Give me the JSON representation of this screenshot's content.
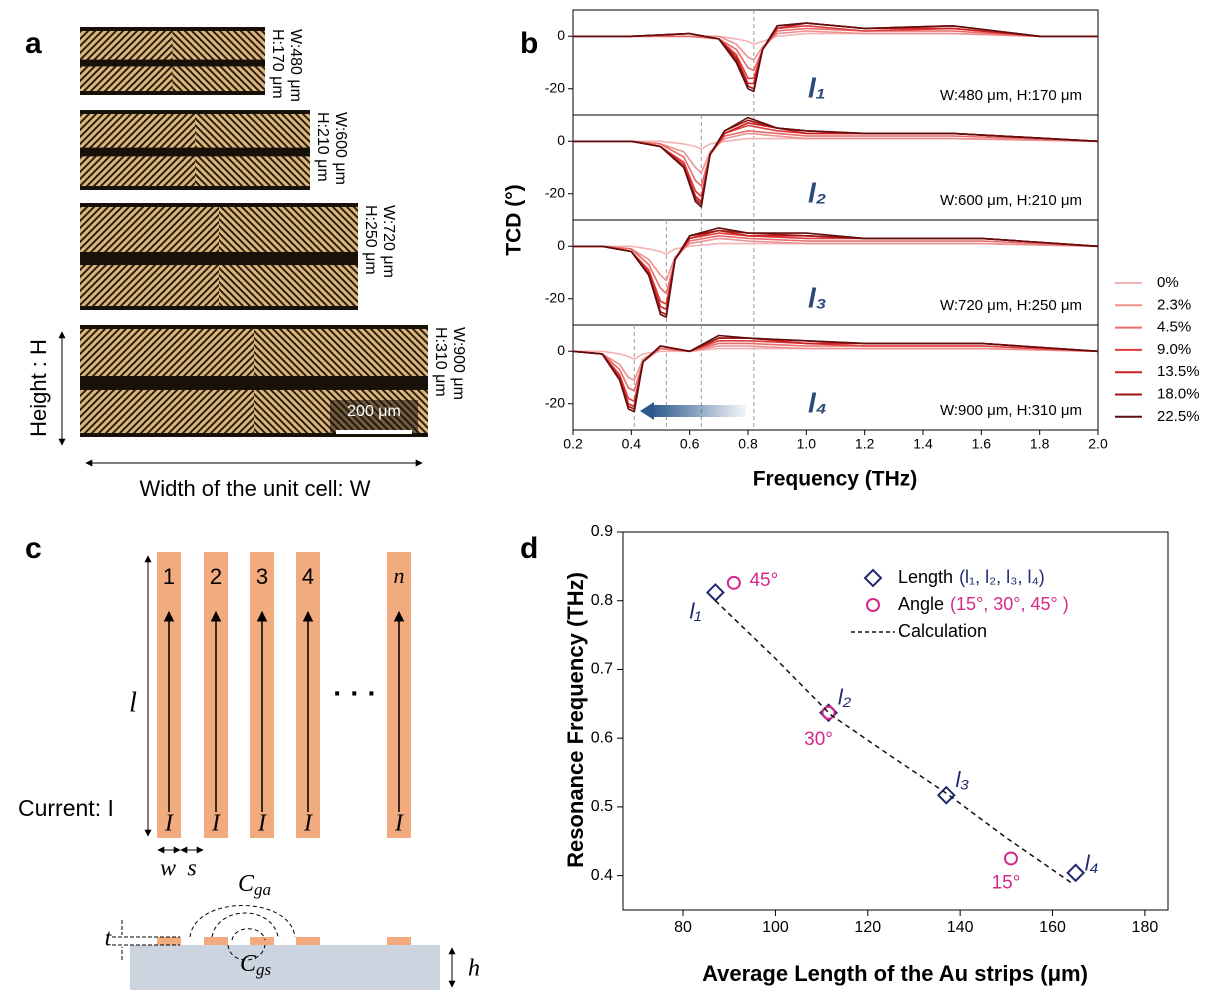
{
  "panel_labels": [
    "a",
    "b",
    "c",
    "d"
  ],
  "images": [
    {
      "w": "W:480 μm",
      "h": "H:170 μm"
    },
    {
      "w": "W:600 μm",
      "h": "H:210 μm"
    },
    {
      "w": "W:720 μm",
      "h": "H:250 μm"
    },
    {
      "w": "W:900 μm",
      "h": "H:310 μm"
    }
  ],
  "scale_bar": "200 μm",
  "height_label": "Height : H",
  "width_label": "Width of the unit cell: W",
  "chart_data": [
    {
      "type": "line",
      "xlabel": "Frequency (THz)",
      "ylabel": "TCD (°)",
      "xlim": [
        0.2,
        2.0
      ],
      "xticks": [
        0.2,
        0.4,
        0.6,
        0.8,
        {
          "value": 1,
          "label": "1.0"
        },
        1.2,
        1.4,
        1.6,
        1.8,
        {
          "value": 2,
          "label": "2.0"
        }
      ],
      "ylim": [
        -30,
        10
      ],
      "yticks": [
        -20,
        0
      ],
      "series": [
        {
          "name": "0%",
          "color": "#f4b3b3"
        },
        {
          "name": "2.3%",
          "color": "#ee9090"
        },
        {
          "name": "4.5%",
          "color": "#e86a6a"
        },
        {
          "name": "9.0%",
          "color": "#e03c3c"
        },
        {
          "name": "13.5%",
          "color": "#cf1f1f"
        },
        {
          "name": "18.0%",
          "color": "#9e1515"
        },
        {
          "name": "22.5%",
          "color": "#5e0e0e"
        }
      ],
      "subplots": [
        {
          "label": "l₁",
          "annotation": "W:480 μm, H:170 μm",
          "vlines": [
            0.82
          ],
          "x": [
            0.2,
            0.4,
            0.6,
            0.7,
            0.76,
            0.8,
            0.82,
            0.85,
            0.9,
            1.0,
            1.2,
            1.5,
            1.8,
            2.0
          ],
          "values": [
            [
              0,
              0,
              0,
              0,
              -1,
              -2,
              -3,
              -2,
              0,
              1,
              1,
              1,
              0,
              0
            ],
            [
              0,
              0,
              0,
              0,
              -3,
              -8,
              -9,
              -4,
              1,
              2,
              1,
              1,
              0,
              0
            ],
            [
              0,
              0,
              0,
              -1,
              -5,
              -12,
              -13,
              -5,
              2,
              3,
              2,
              2,
              0,
              0
            ],
            [
              0,
              0,
              1,
              -1,
              -7,
              -16,
              -16,
              -5,
              3,
              4,
              2,
              3,
              0,
              0
            ],
            [
              0,
              0,
              1,
              -1,
              -8,
              -18,
              -18,
              -5,
              3,
              5,
              3,
              3,
              0,
              0
            ],
            [
              0,
              0,
              1,
              -1,
              -9,
              -19,
              -20,
              -5,
              4,
              5,
              3,
              4,
              0,
              0
            ],
            [
              0,
              0,
              1,
              -1,
              -10,
              -20,
              -21,
              -5,
              4,
              5,
              3,
              4,
              0,
              0
            ]
          ]
        },
        {
          "label": "l₂",
          "annotation": "W:600 μm, H:210 μm",
          "vlines": [
            0.64,
            0.82
          ],
          "x": [
            0.2,
            0.4,
            0.5,
            0.58,
            0.62,
            0.64,
            0.67,
            0.72,
            0.8,
            0.9,
            1.0,
            1.2,
            1.5,
            2.0
          ],
          "values": [
            [
              0,
              0,
              0,
              -1,
              -2,
              -3,
              -1,
              0,
              1,
              1,
              1,
              1,
              1,
              0
            ],
            [
              0,
              0,
              -1,
              -4,
              -10,
              -12,
              -4,
              1,
              3,
              2,
              1,
              1,
              1,
              0
            ],
            [
              0,
              0,
              -1,
              -6,
              -15,
              -17,
              -5,
              2,
              4,
              3,
              2,
              2,
              2,
              0
            ],
            [
              0,
              0,
              -2,
              -8,
              -19,
              -21,
              -5,
              3,
              6,
              4,
              3,
              3,
              3,
              0
            ],
            [
              0,
              0,
              -2,
              -9,
              -21,
              -23,
              -5,
              3,
              7,
              5,
              3,
              3,
              3,
              0
            ],
            [
              0,
              0,
              -2,
              -10,
              -22,
              -24,
              -5,
              4,
              8,
              5,
              4,
              3,
              3,
              0
            ],
            [
              0,
              0,
              -2,
              -10,
              -23,
              -25,
              -5,
              4,
              9,
              5,
              4,
              3,
              3,
              0
            ]
          ]
        },
        {
          "label": "l₃",
          "annotation": "W:720 μm, H:250 μm",
          "vlines": [
            0.52,
            0.64,
            0.82
          ],
          "x": [
            0.2,
            0.3,
            0.4,
            0.46,
            0.5,
            0.52,
            0.55,
            0.6,
            0.7,
            0.8,
            1.0,
            1.2,
            1.6,
            2.0
          ],
          "values": [
            [
              0,
              0,
              0,
              -1,
              -2,
              -3,
              -1,
              0,
              1,
              1,
              1,
              1,
              1,
              0
            ],
            [
              0,
              0,
              -1,
              -5,
              -11,
              -13,
              -4,
              1,
              3,
              2,
              1,
              1,
              1,
              0
            ],
            [
              0,
              0,
              -1,
              -7,
              -16,
              -18,
              -5,
              2,
              4,
              3,
              2,
              2,
              2,
              0
            ],
            [
              0,
              0,
              -2,
              -9,
              -21,
              -22,
              -5,
              3,
              5,
              4,
              3,
              3,
              3,
              0
            ],
            [
              0,
              0,
              -2,
              -10,
              -23,
              -24,
              -5,
              3,
              6,
              4,
              4,
              3,
              3,
              0
            ],
            [
              0,
              0,
              -2,
              -11,
              -25,
              -26,
              -5,
              4,
              6,
              5,
              4,
              3,
              3,
              0
            ],
            [
              0,
              0,
              -2,
              -11,
              -26,
              -27,
              -5,
              4,
              7,
              5,
              5,
              3,
              3,
              0
            ]
          ]
        },
        {
          "label": "l₄",
          "annotation": "W:900 μm, H:310 μm",
          "vlines": [
            0.41,
            0.52,
            0.64,
            0.82
          ],
          "x": [
            0.2,
            0.3,
            0.36,
            0.39,
            0.41,
            0.44,
            0.5,
            0.6,
            0.7,
            0.8,
            1.0,
            1.2,
            1.6,
            2.0
          ],
          "values": [
            [
              0,
              0,
              -1,
              -2,
              -3,
              -1,
              0,
              0,
              1,
              1,
              1,
              1,
              1,
              0
            ],
            [
              0,
              -1,
              -5,
              -10,
              -11,
              -3,
              1,
              0,
              2,
              2,
              1,
              1,
              1,
              0
            ],
            [
              0,
              -1,
              -7,
              -14,
              -15,
              -4,
              1,
              0,
              3,
              3,
              2,
              2,
              2,
              0
            ],
            [
              0,
              -1,
              -9,
              -18,
              -19,
              -4,
              2,
              0,
              4,
              4,
              3,
              2,
              2,
              0
            ],
            [
              0,
              -1,
              -10,
              -20,
              -21,
              -4,
              2,
              0,
              5,
              5,
              3,
              3,
              3,
              0
            ],
            [
              0,
              -1,
              -11,
              -21,
              -22,
              -4,
              2,
              0,
              5,
              5,
              4,
              3,
              3,
              0
            ],
            [
              0,
              -1,
              -11,
              -22,
              -23,
              -4,
              2,
              0,
              6,
              5,
              4,
              3,
              3,
              0
            ]
          ]
        }
      ]
    },
    {
      "type": "scatter",
      "xlabel": "Average Length of the Au strips (μm)",
      "ylabel": "Resonance Frequency (THz)",
      "xlim": [
        67,
        185
      ],
      "xticks": [
        80,
        100,
        120,
        140,
        160,
        180
      ],
      "ylim": [
        0.35,
        0.9
      ],
      "yticks": [
        0.4,
        0.5,
        0.6,
        0.7,
        0.8,
        0.9
      ],
      "series": [
        {
          "name": "Length",
          "name_detail": "(l₁, l₂, l₃, l₄)",
          "marker": "diamond",
          "color": "#1f2a6e",
          "x": [
            87,
            111.5,
            137,
            165
          ],
          "values": [
            0.812,
            0.637,
            0.517,
            0.404
          ],
          "point_labels": [
            "l₁",
            "l₂",
            "l₃",
            "l₄"
          ]
        },
        {
          "name": "Angle",
          "name_detail": "(15°, 30°, 45° )",
          "marker": "circle",
          "color": "#d6288a",
          "x": [
            91,
            111.5,
            151
          ],
          "values": [
            0.826,
            0.637,
            0.425
          ],
          "point_labels": [
            "45°",
            "30°",
            "15°"
          ]
        },
        {
          "name": "Calculation",
          "marker": "dash",
          "color": "#111111",
          "x": [
            87,
            100,
            112,
            125,
            137,
            150,
            164
          ],
          "values": [
            0.8,
            0.716,
            0.634,
            0.574,
            0.52,
            0.455,
            0.39
          ]
        }
      ]
    }
  ],
  "diagram": {
    "strip_labels": [
      "1",
      "2",
      "3",
      "4",
      "n"
    ],
    "length": "l",
    "current_symbol": "I",
    "current_label": "Current: I",
    "dots": "· · ·",
    "w": "w",
    "s": "s",
    "t": "t",
    "h": "h",
    "c_ga": "C",
    "c_ga_sub": "ga",
    "c_gs": "C",
    "c_gs_sub": "gs"
  }
}
